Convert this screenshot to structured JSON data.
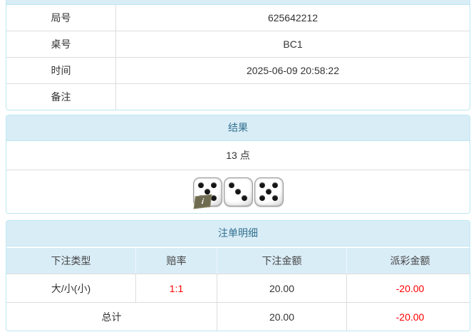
{
  "colors": {
    "panel_border": "#bce8f1",
    "heading_bg": "#d9edf7",
    "heading_text": "#31708f",
    "cell_border": "#dddddd",
    "negative_text": "#ff0000"
  },
  "game_info": {
    "rows": [
      {
        "label": "局号",
        "value": "625642212"
      },
      {
        "label": "桌号",
        "value": "BC1"
      },
      {
        "label": "时间",
        "value": "2025-06-09 20:58:22"
      },
      {
        "label": "备注",
        "value": ""
      }
    ]
  },
  "result": {
    "title": "结果",
    "points": "13 点",
    "dice": [
      5,
      3,
      5
    ],
    "info_badge": "i"
  },
  "bets": {
    "title": "注单明细",
    "columns": [
      "下注类型",
      "赔率",
      "下注金额",
      "派彩金额"
    ],
    "rows": [
      {
        "type": "大/小(小)",
        "odds": "1:1",
        "amount": "20.00",
        "payout": "-20.00"
      }
    ],
    "total": {
      "label": "总计",
      "amount": "20.00",
      "payout": "-20.00"
    }
  }
}
